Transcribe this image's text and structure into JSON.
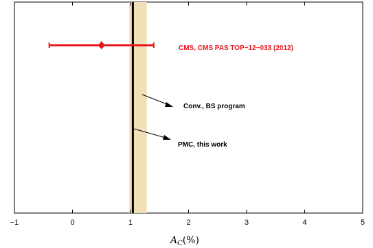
{
  "chart_data": {
    "type": "scatter",
    "xlabel_main": "A",
    "xlabel_sub": "C",
    "xlabel_unit": "(%)",
    "xlim": [
      -1,
      5
    ],
    "xticks": [
      -1,
      0,
      1,
      2,
      3,
      4,
      5
    ],
    "grid": false,
    "measurement": {
      "label": "CMS, CMS PAS TOP−12−033 (2012)",
      "value": 0.5,
      "err_low": -0.4,
      "err_high": 1.4,
      "color": "#e8151b"
    },
    "band": {
      "low": 0.98,
      "high": 1.28,
      "color": "#f1dfb8"
    },
    "line": {
      "value": 1.04,
      "color": "#000000"
    },
    "annotations": [
      {
        "text": "Conv., BS program"
      },
      {
        "text": "PMC, this work"
      }
    ]
  }
}
